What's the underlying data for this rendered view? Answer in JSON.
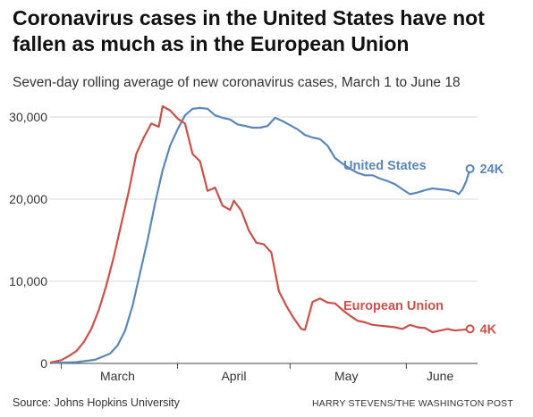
{
  "title": "Coronavirus cases in the United States have not fallen as much as in the European Union",
  "subtitle": "Seven-day rolling average of new coronavirus cases, March 1 to June 18",
  "source": "Source: Johns Hopkins University",
  "credit": "HARRY STEVENS/THE WASHINGTON POST",
  "chart_data": {
    "type": "line",
    "x_domain": [
      "2020-02-27",
      "2020-06-20"
    ],
    "ylim": [
      0,
      30000
    ],
    "y_ticks": [
      {
        "value": 0,
        "label": "0"
      },
      {
        "value": 10000,
        "label": "10,000"
      },
      {
        "value": 20000,
        "label": "20,000"
      },
      {
        "value": 30000,
        "label": "30,000"
      }
    ],
    "x_ticks": [
      {
        "date": "2020-03-01",
        "label": "March",
        "label_date": "2020-03-16"
      },
      {
        "date": "2020-04-01",
        "label": "April",
        "label_date": "2020-04-16"
      },
      {
        "date": "2020-05-01",
        "label": "May",
        "label_date": "2020-05-16"
      },
      {
        "date": "2020-06-01",
        "label": "June",
        "label_date": "2020-06-10"
      }
    ],
    "grid": "horizontal",
    "series": [
      {
        "name": "United States",
        "color": "#5b87b8",
        "end_label": "24K",
        "points": [
          [
            "2020-02-27",
            50
          ],
          [
            "2020-03-05",
            150
          ],
          [
            "2020-03-10",
            450
          ],
          [
            "2020-03-14",
            1200
          ],
          [
            "2020-03-16",
            2200
          ],
          [
            "2020-03-18",
            4000
          ],
          [
            "2020-03-20",
            7000
          ],
          [
            "2020-03-22",
            11000
          ],
          [
            "2020-03-24",
            15000
          ],
          [
            "2020-03-26",
            19500
          ],
          [
            "2020-03-28",
            23500
          ],
          [
            "2020-03-30",
            26500
          ],
          [
            "2020-04-01",
            28500
          ],
          [
            "2020-04-03",
            30200
          ],
          [
            "2020-04-05",
            31000
          ],
          [
            "2020-04-07",
            31100
          ],
          [
            "2020-04-09",
            31000
          ],
          [
            "2020-04-11",
            30200
          ],
          [
            "2020-04-13",
            29900
          ],
          [
            "2020-04-15",
            29700
          ],
          [
            "2020-04-17",
            29100
          ],
          [
            "2020-04-19",
            28900
          ],
          [
            "2020-04-21",
            28700
          ],
          [
            "2020-04-23",
            28700
          ],
          [
            "2020-04-25",
            28900
          ],
          [
            "2020-04-27",
            29900
          ],
          [
            "2020-04-29",
            29500
          ],
          [
            "2020-05-01",
            29000
          ],
          [
            "2020-05-03",
            28500
          ],
          [
            "2020-05-05",
            27800
          ],
          [
            "2020-05-07",
            27500
          ],
          [
            "2020-05-09",
            27300
          ],
          [
            "2020-05-11",
            26500
          ],
          [
            "2020-05-13",
            25000
          ],
          [
            "2020-05-15",
            24300
          ],
          [
            "2020-05-17",
            23700
          ],
          [
            "2020-05-19",
            23200
          ],
          [
            "2020-05-21",
            22900
          ],
          [
            "2020-05-23",
            22900
          ],
          [
            "2020-05-25",
            22500
          ],
          [
            "2020-05-27",
            22200
          ],
          [
            "2020-05-29",
            21800
          ],
          [
            "2020-05-31",
            21200
          ],
          [
            "2020-06-02",
            20600
          ],
          [
            "2020-06-04",
            20800
          ],
          [
            "2020-06-06",
            21100
          ],
          [
            "2020-06-08",
            21300
          ],
          [
            "2020-06-10",
            21200
          ],
          [
            "2020-06-12",
            21100
          ],
          [
            "2020-06-14",
            20900
          ],
          [
            "2020-06-15",
            20600
          ],
          [
            "2020-06-16",
            21200
          ],
          [
            "2020-06-17",
            22200
          ],
          [
            "2020-06-18",
            23700
          ]
        ]
      },
      {
        "name": "European Union",
        "color": "#c9514a",
        "end_label": "4K",
        "points": [
          [
            "2020-02-27",
            100
          ],
          [
            "2020-03-01",
            400
          ],
          [
            "2020-03-03",
            900
          ],
          [
            "2020-03-05",
            1500
          ],
          [
            "2020-03-07",
            2600
          ],
          [
            "2020-03-09",
            4200
          ],
          [
            "2020-03-11",
            6500
          ],
          [
            "2020-03-13",
            9500
          ],
          [
            "2020-03-15",
            13000
          ],
          [
            "2020-03-17",
            17000
          ],
          [
            "2020-03-19",
            21000
          ],
          [
            "2020-03-21",
            25500
          ],
          [
            "2020-03-23",
            27500
          ],
          [
            "2020-03-25",
            29200
          ],
          [
            "2020-03-27",
            28800
          ],
          [
            "2020-03-28",
            31300
          ],
          [
            "2020-03-30",
            30800
          ],
          [
            "2020-04-01",
            29800
          ],
          [
            "2020-04-03",
            29200
          ],
          [
            "2020-04-05",
            25500
          ],
          [
            "2020-04-07",
            24600
          ],
          [
            "2020-04-09",
            21000
          ],
          [
            "2020-04-11",
            21400
          ],
          [
            "2020-04-13",
            19200
          ],
          [
            "2020-04-15",
            18700
          ],
          [
            "2020-04-16",
            19800
          ],
          [
            "2020-04-18",
            18600
          ],
          [
            "2020-04-20",
            16200
          ],
          [
            "2020-04-22",
            14700
          ],
          [
            "2020-04-24",
            14500
          ],
          [
            "2020-04-26",
            13500
          ],
          [
            "2020-04-28",
            8800
          ],
          [
            "2020-04-30",
            7000
          ],
          [
            "2020-05-02",
            5500
          ],
          [
            "2020-05-04",
            4200
          ],
          [
            "2020-05-05",
            4100
          ],
          [
            "2020-05-07",
            7500
          ],
          [
            "2020-05-09",
            7900
          ],
          [
            "2020-05-11",
            7400
          ],
          [
            "2020-05-13",
            7300
          ],
          [
            "2020-05-15",
            6500
          ],
          [
            "2020-05-17",
            5800
          ],
          [
            "2020-05-19",
            5200
          ],
          [
            "2020-05-21",
            5000
          ],
          [
            "2020-05-23",
            4700
          ],
          [
            "2020-05-25",
            4600
          ],
          [
            "2020-05-27",
            4500
          ],
          [
            "2020-05-29",
            4400
          ],
          [
            "2020-05-31",
            4200
          ],
          [
            "2020-06-02",
            4700
          ],
          [
            "2020-06-04",
            4400
          ],
          [
            "2020-06-06",
            4300
          ],
          [
            "2020-06-08",
            3800
          ],
          [
            "2020-06-10",
            4000
          ],
          [
            "2020-06-12",
            4200
          ],
          [
            "2020-06-14",
            4000
          ],
          [
            "2020-06-16",
            4100
          ],
          [
            "2020-06-18",
            4200
          ]
        ]
      }
    ]
  }
}
